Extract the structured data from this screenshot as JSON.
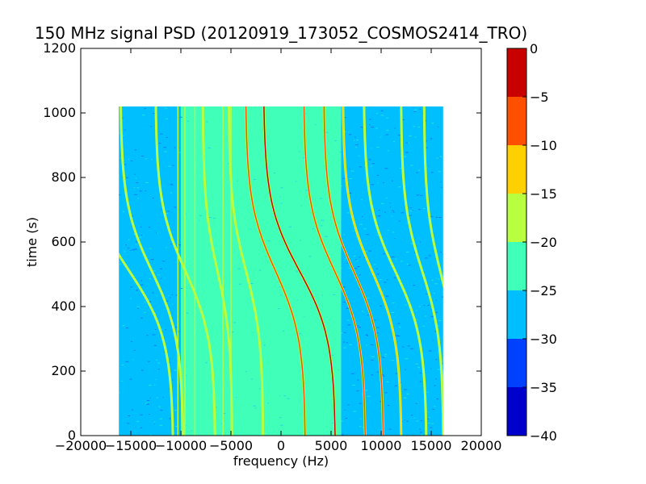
{
  "chart_data": {
    "type": "heatmap",
    "title": "150 MHz signal PSD (20120919_173052_COSMOS2414_TRO)",
    "xlabel": "frequency (Hz)",
    "ylabel": "time (s)",
    "xlim": [
      -20000,
      20000
    ],
    "ylim": [
      0,
      1200
    ],
    "x_ticks": [
      -20000,
      -15000,
      -10000,
      -5000,
      0,
      5000,
      10000,
      15000,
      20000
    ],
    "x_tick_labels": [
      "−20000",
      "−15000",
      "−10000",
      "−5000",
      "0",
      "5000",
      "10000",
      "15000",
      "20000"
    ],
    "y_ticks": [
      0,
      200,
      400,
      600,
      800,
      1000,
      1200
    ],
    "y_tick_labels": [
      "0",
      "200",
      "400",
      "600",
      "800",
      "1000",
      "1200"
    ],
    "data_extent": {
      "x": [
        -16200,
        16200
      ],
      "y": [
        0,
        1020
      ]
    },
    "background_regions": [
      {
        "x": [
          -16200,
          -10000
        ],
        "level": -27.5
      },
      {
        "x": [
          -10000,
          2500
        ],
        "level": -22.5
      },
      {
        "x": [
          2500,
          6000
        ],
        "level": -22.5
      },
      {
        "x": [
          6000,
          16200
        ],
        "level": -27.5
      }
    ],
    "signal_traces": [
      {
        "x_at_0": -10800,
        "x_at_1020": -19500,
        "peak_level": -17.5
      },
      {
        "x_at_0": -9800,
        "x_at_1020": -16000,
        "peak_level": -17.5
      },
      {
        "x_at_0": -6600,
        "x_at_1020": -12500,
        "peak_level": -17.5
      },
      {
        "x_at_0": -4900,
        "x_at_1020": -7800,
        "peak_level": -17.5
      },
      {
        "x_at_0": -1800,
        "x_at_1020": -5200,
        "peak_level": -17.5
      },
      {
        "x_at_0": 2400,
        "x_at_1020": -3500,
        "peak_level": -7.5
      },
      {
        "x_at_0": 5400,
        "x_at_1020": -1700,
        "peak_level": -2.5
      },
      {
        "x_at_0": 8400,
        "x_at_1020": 2300,
        "peak_level": -7.5
      },
      {
        "x_at_0": 10200,
        "x_at_1020": 4300,
        "peak_level": -7.5
      },
      {
        "x_at_0": 12000,
        "x_at_1020": 6200,
        "peak_level": -12.5
      },
      {
        "x_at_0": 14500,
        "x_at_1020": 8300,
        "peak_level": -17.5
      },
      {
        "x_at_0": 16200,
        "x_at_1020": 12000,
        "peak_level": -17.5
      },
      {
        "x_at_0": 17500,
        "x_at_1020": 14300,
        "peak_level": -17.5
      }
    ],
    "vertical_lines": [
      {
        "x": -10300,
        "level": -17.5
      },
      {
        "x": -9600,
        "level": -17.5
      },
      {
        "x": -8600,
        "level": -17.5
      },
      {
        "x": -5800,
        "level": -17.5
      },
      {
        "x": -5000,
        "level": -17.5
      },
      {
        "x": -1400,
        "level": -20
      },
      {
        "x": 3800,
        "level": -20
      }
    ],
    "colorbar": {
      "min": -40,
      "max": 0,
      "bins": [
        {
          "from": -40,
          "to": -35,
          "color": "#0000cd"
        },
        {
          "from": -35,
          "to": -30,
          "color": "#0040ff"
        },
        {
          "from": -30,
          "to": -25,
          "color": "#00bfff"
        },
        {
          "from": -25,
          "to": -20,
          "color": "#40ffb8"
        },
        {
          "from": -20,
          "to": -15,
          "color": "#b8ff40"
        },
        {
          "from": -15,
          "to": -10,
          "color": "#ffd000"
        },
        {
          "from": -10,
          "to": -5,
          "color": "#ff5000"
        },
        {
          "from": -5,
          "to": 0,
          "color": "#c80000"
        }
      ],
      "ticks": [
        0,
        -5,
        -10,
        -15,
        -20,
        -25,
        -30,
        -35,
        -40
      ],
      "tick_labels": [
        "0",
        "−5",
        "−10",
        "−15",
        "−20",
        "−25",
        "−30",
        "−35",
        "−40"
      ]
    }
  }
}
